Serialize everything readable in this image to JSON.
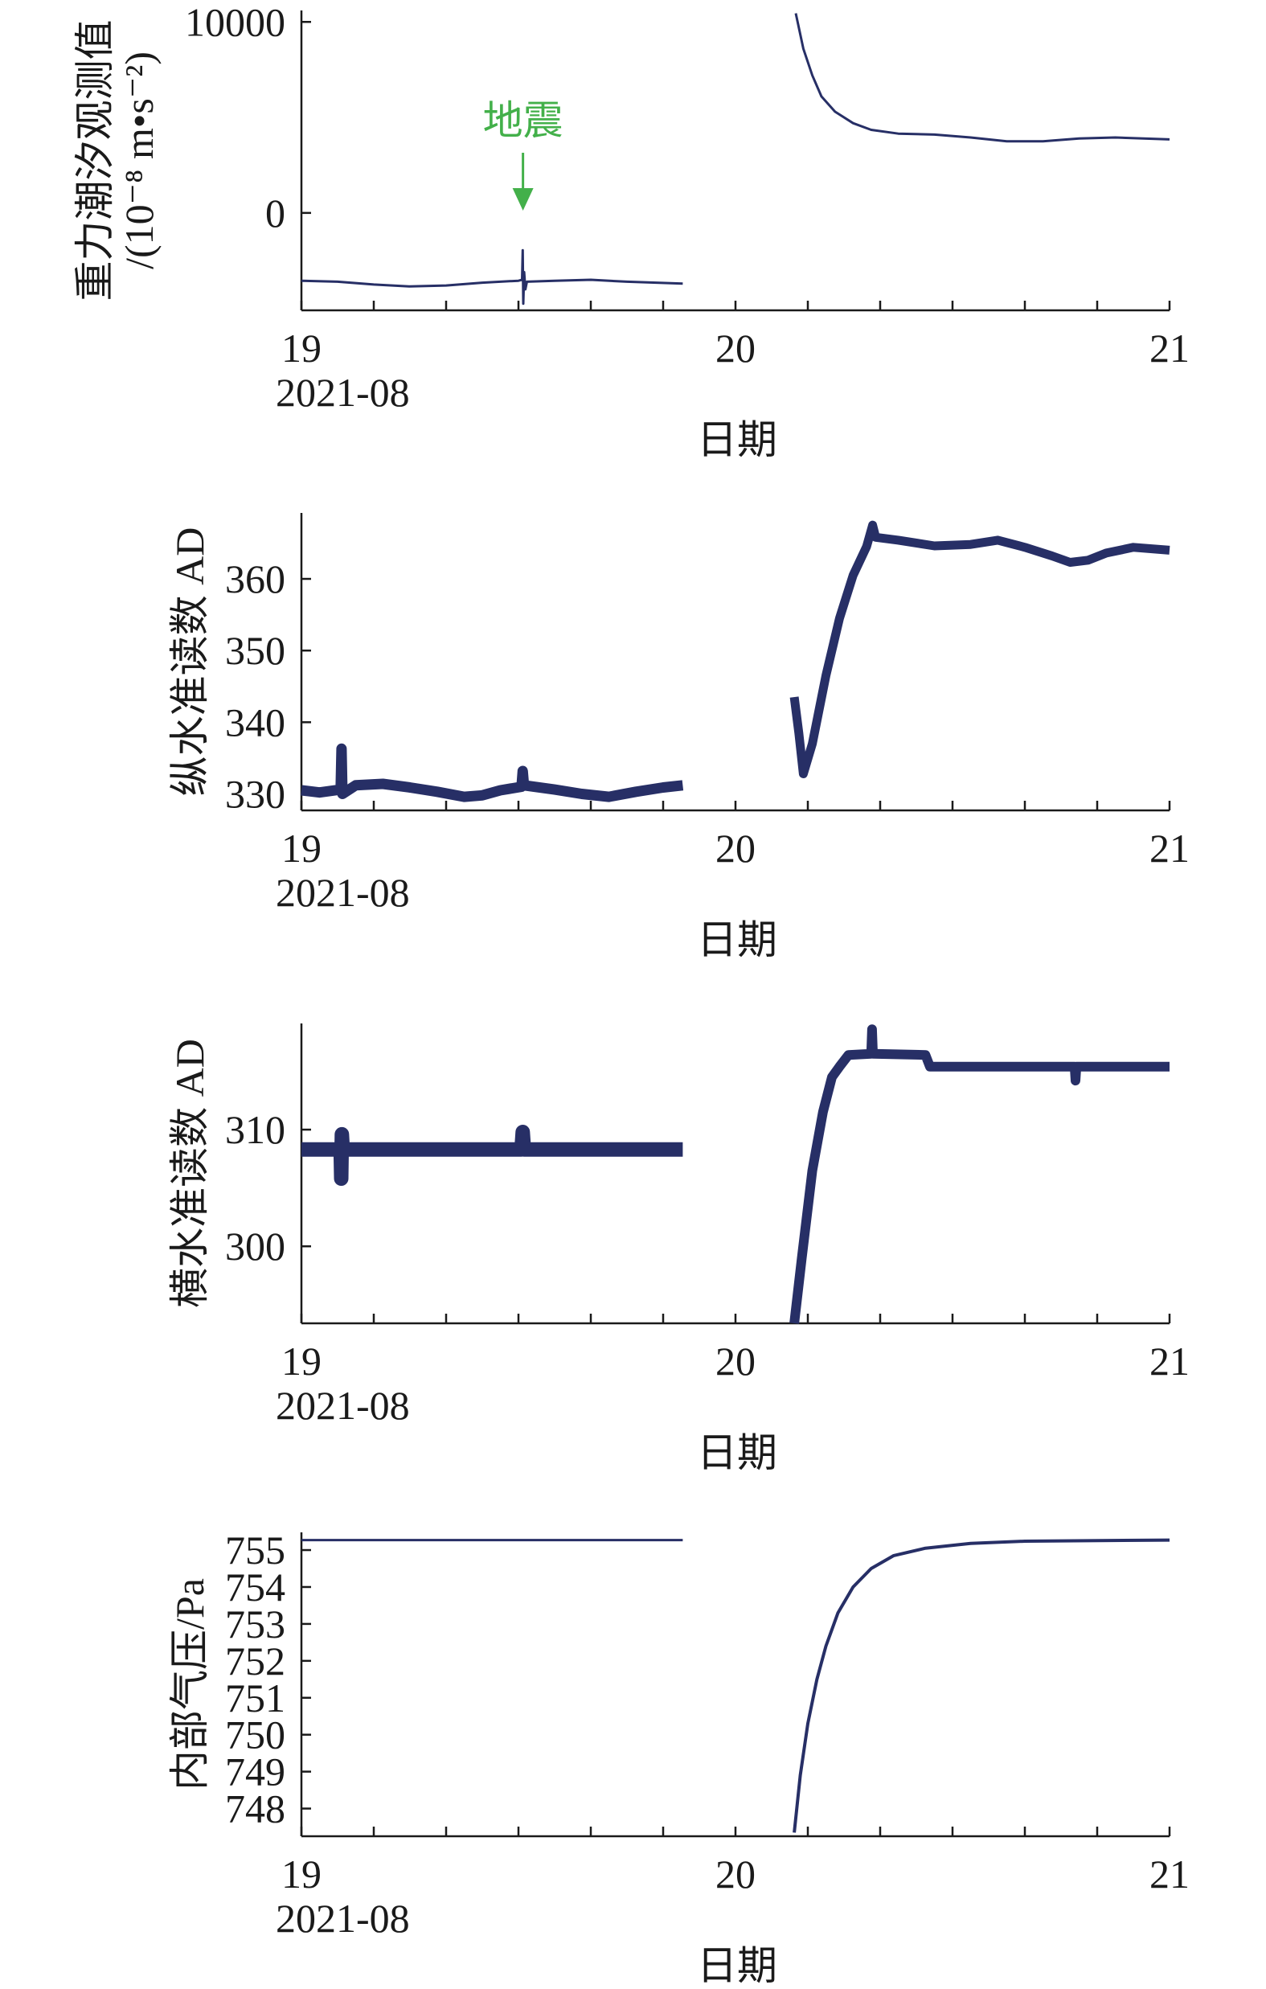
{
  "figure": {
    "background": "#ffffff",
    "line_color": "#272f66",
    "annotation_color": "#43b04a"
  },
  "chart_data": [
    {
      "type": "line",
      "ylabel": "重力潮汐观测值",
      "ylabel_unit": "/(10⁻⁸ m•s⁻²)",
      "xlabel": "日期",
      "xlim": [
        "2021-08-19 00:00",
        "2021-08-21 00:00"
      ],
      "ylim": [
        -5100,
        10600
      ],
      "yticks": [
        10000,
        0
      ],
      "xticks": [
        {
          "x": "2021-08-19 00:00",
          "label": "19"
        },
        {
          "x": "2021-08-20 00:00",
          "label": "20"
        },
        {
          "x": "2021-08-21 00:00",
          "label": "21"
        }
      ],
      "xtick_sublabel": "2021-08",
      "grid": false,
      "annotations": [
        {
          "text": "地震",
          "x": "2021-08-19 12:15"
        }
      ],
      "series": [
        {
          "segments": [
            [
              [
                "2021-08-19 00:00",
                -3550
              ],
              [
                "2021-08-19 02:00",
                -3600
              ],
              [
                "2021-08-19 04:00",
                -3750
              ],
              [
                "2021-08-19 06:00",
                -3850
              ],
              [
                "2021-08-19 08:00",
                -3800
              ],
              [
                "2021-08-19 10:00",
                -3650
              ],
              [
                "2021-08-19 12:00",
                -3550
              ],
              [
                "2021-08-19 12:12",
                -3500
              ],
              [
                "2021-08-19 12:14",
                -1950
              ],
              [
                "2021-08-19 12:16",
                -4750
              ],
              [
                "2021-08-19 12:19",
                -3100
              ],
              [
                "2021-08-19 12:23",
                -4000
              ],
              [
                "2021-08-19 12:28",
                -3600
              ],
              [
                "2021-08-19 14:00",
                -3550
              ],
              [
                "2021-08-19 16:00",
                -3500
              ],
              [
                "2021-08-19 18:00",
                -3600
              ],
              [
                "2021-08-19 21:05",
                -3700
              ]
            ],
            [
              [
                "2021-08-20 03:20",
                10450
              ],
              [
                "2021-08-20 03:45",
                8600
              ],
              [
                "2021-08-20 04:15",
                7200
              ],
              [
                "2021-08-20 04:45",
                6100
              ],
              [
                "2021-08-20 05:30",
                5300
              ],
              [
                "2021-08-20 06:30",
                4700
              ],
              [
                "2021-08-20 07:30",
                4350
              ],
              [
                "2021-08-20 09:00",
                4150
              ],
              [
                "2021-08-20 11:00",
                4100
              ],
              [
                "2021-08-20 13:00",
                3950
              ],
              [
                "2021-08-20 15:00",
                3750
              ],
              [
                "2021-08-20 17:00",
                3750
              ],
              [
                "2021-08-20 19:00",
                3900
              ],
              [
                "2021-08-20 21:00",
                3950
              ],
              [
                "2021-08-21 00:00",
                3850
              ]
            ]
          ]
        }
      ]
    },
    {
      "type": "line",
      "ylabel": "纵水准读数 AD",
      "xlabel": "日期",
      "xlim": [
        "2021-08-19 00:00",
        "2021-08-21 00:00"
      ],
      "ylim": [
        327.7,
        369.2
      ],
      "yticks": [
        360,
        350,
        340,
        330
      ],
      "xticks": [
        {
          "x": "2021-08-19 00:00",
          "label": "19"
        },
        {
          "x": "2021-08-20 00:00",
          "label": "20"
        },
        {
          "x": "2021-08-21 00:00",
          "label": "21"
        }
      ],
      "xtick_sublabel": "2021-08",
      "grid": false,
      "series": [
        {
          "segments": [
            [
              [
                "2021-08-19 00:00",
                330.5
              ],
              [
                "2021-08-19 01:00",
                330.2
              ],
              [
                "2021-08-19 02:10",
                330.6
              ],
              [
                "2021-08-19 02:13",
                336.3
              ],
              [
                "2021-08-19 02:16",
                330.0
              ],
              [
                "2021-08-19 03:00",
                331.2
              ],
              [
                "2021-08-19 04:30",
                331.4
              ],
              [
                "2021-08-19 06:00",
                330.9
              ],
              [
                "2021-08-19 07:30",
                330.3
              ],
              [
                "2021-08-19 09:00",
                329.6
              ],
              [
                "2021-08-19 10:00",
                329.8
              ],
              [
                "2021-08-19 11:00",
                330.5
              ],
              [
                "2021-08-19 12:10",
                331.0
              ],
              [
                "2021-08-19 12:14",
                333.2
              ],
              [
                "2021-08-19 12:18",
                331.2
              ],
              [
                "2021-08-19 14:00",
                330.6
              ],
              [
                "2021-08-19 15:30",
                330.0
              ],
              [
                "2021-08-19 17:00",
                329.6
              ],
              [
                "2021-08-19 18:30",
                330.3
              ],
              [
                "2021-08-19 20:00",
                330.9
              ],
              [
                "2021-08-19 21:05",
                331.2
              ]
            ],
            [
              [
                "2021-08-20 03:15",
                343.5
              ],
              [
                "2021-08-20 03:30",
                338.5
              ],
              [
                "2021-08-20 03:45",
                332.8
              ],
              [
                "2021-08-20 04:15",
                337.0
              ],
              [
                "2021-08-20 05:00",
                346.5
              ],
              [
                "2021-08-20 05:45",
                354.5
              ],
              [
                "2021-08-20 06:30",
                360.5
              ],
              [
                "2021-08-20 07:15",
                364.5
              ],
              [
                "2021-08-20 07:35",
                367.5
              ],
              [
                "2021-08-20 07:45",
                365.8
              ],
              [
                "2021-08-20 09:00",
                365.4
              ],
              [
                "2021-08-20 11:00",
                364.6
              ],
              [
                "2021-08-20 13:00",
                364.8
              ],
              [
                "2021-08-20 14:30",
                365.4
              ],
              [
                "2021-08-20 16:00",
                364.4
              ],
              [
                "2021-08-20 17:30",
                363.2
              ],
              [
                "2021-08-20 18:30",
                362.3
              ],
              [
                "2021-08-20 19:30",
                362.6
              ],
              [
                "2021-08-20 20:30",
                363.6
              ],
              [
                "2021-08-20 22:00",
                364.4
              ],
              [
                "2021-08-21 00:00",
                364.0
              ]
            ]
          ]
        }
      ]
    },
    {
      "type": "line",
      "ylabel": "横水准读数 AD",
      "xlabel": "日期",
      "xlim": [
        "2021-08-19 00:00",
        "2021-08-21 00:00"
      ],
      "ylim": [
        293.4,
        319.1
      ],
      "yticks": [
        310,
        300
      ],
      "xticks": [
        {
          "x": "2021-08-19 00:00",
          "label": "19"
        },
        {
          "x": "2021-08-20 00:00",
          "label": "20"
        },
        {
          "x": "2021-08-21 00:00",
          "label": "21"
        }
      ],
      "xtick_sublabel": "2021-08",
      "grid": false,
      "series": [
        {
          "segments": [
            [
              [
                "2021-08-19 00:00",
                308.3
              ],
              [
                "2021-08-19 02:10",
                308.3
              ],
              [
                "2021-08-19 02:12",
                305.8
              ],
              [
                "2021-08-19 02:14",
                309.6
              ],
              [
                "2021-08-19 02:17",
                308.3
              ],
              [
                "2021-08-19 12:10",
                308.3
              ],
              [
                "2021-08-19 12:14",
                309.8
              ],
              [
                "2021-08-19 12:18",
                308.3
              ],
              [
                "2021-08-19 21:05",
                308.3
              ]
            ],
            [
              [
                "2021-08-20 03:15",
                293.4
              ],
              [
                "2021-08-20 03:40",
                299.0
              ],
              [
                "2021-08-20 04:15",
                306.5
              ],
              [
                "2021-08-20 04:50",
                311.5
              ],
              [
                "2021-08-20 05:20",
                314.5
              ],
              [
                "2021-08-20 05:45",
                315.4
              ],
              [
                "2021-08-20 06:15",
                316.4
              ],
              [
                "2021-08-20 07:30",
                316.5
              ],
              [
                "2021-08-20 07:33",
                318.6
              ],
              [
                "2021-08-20 07:36",
                316.5
              ],
              [
                "2021-08-20 10:30",
                316.4
              ],
              [
                "2021-08-20 10:45",
                315.4
              ],
              [
                "2021-08-20 18:45",
                315.4
              ],
              [
                "2021-08-20 18:48",
                314.2
              ],
              [
                "2021-08-20 18:51",
                315.4
              ],
              [
                "2021-08-21 00:00",
                315.4
              ]
            ]
          ]
        }
      ]
    },
    {
      "type": "line",
      "ylabel": "内部气压/Pa",
      "xlabel": "日期",
      "xlim": [
        "2021-08-19 00:00",
        "2021-08-21 00:00"
      ],
      "ylim": [
        747.25,
        755.48
      ],
      "yticks": [
        755,
        754,
        753,
        752,
        751,
        750,
        749,
        748
      ],
      "xticks": [
        {
          "x": "2021-08-19 00:00",
          "label": "19"
        },
        {
          "x": "2021-08-20 00:00",
          "label": "20"
        },
        {
          "x": "2021-08-21 00:00",
          "label": "21"
        }
      ],
      "xtick_sublabel": "2021-08",
      "grid": false,
      "series": [
        {
          "segments": [
            [
              [
                "2021-08-19 00:00",
                755.27
              ],
              [
                "2021-08-19 21:05",
                755.27
              ]
            ],
            [
              [
                "2021-08-20 03:15",
                747.35
              ],
              [
                "2021-08-20 03:35",
                748.9
              ],
              [
                "2021-08-20 04:00",
                750.3
              ],
              [
                "2021-08-20 04:30",
                751.5
              ],
              [
                "2021-08-20 05:00",
                752.4
              ],
              [
                "2021-08-20 05:40",
                753.3
              ],
              [
                "2021-08-20 06:30",
                754.0
              ],
              [
                "2021-08-20 07:30",
                754.5
              ],
              [
                "2021-08-20 08:45",
                754.85
              ],
              [
                "2021-08-20 10:30",
                755.05
              ],
              [
                "2021-08-20 13:00",
                755.18
              ],
              [
                "2021-08-20 16:00",
                755.24
              ],
              [
                "2021-08-21 00:00",
                755.27
              ]
            ]
          ]
        }
      ]
    }
  ]
}
